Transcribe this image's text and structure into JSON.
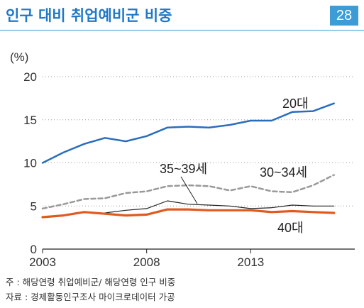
{
  "header": {
    "title": "인구 대비 취업예비군 비중",
    "badge": "28"
  },
  "chart_data": {
    "type": "line",
    "unit_label": "(%)",
    "x": [
      2003,
      2004,
      2005,
      2006,
      2007,
      2008,
      2009,
      2010,
      2011,
      2012,
      2013,
      2014,
      2015,
      2016,
      2017
    ],
    "xticks": [
      "2003",
      "2008",
      "2013"
    ],
    "yticks": [
      "0",
      "5",
      "10",
      "15",
      "20"
    ],
    "ylim": [
      0,
      20
    ],
    "xlim": [
      2003,
      2018
    ],
    "grid": "horizontal-dotted",
    "series": [
      {
        "name": "20대",
        "color": "#2a6ebb",
        "width": 2.5,
        "dash": "",
        "values": [
          10.0,
          11.2,
          12.2,
          12.9,
          12.5,
          13.1,
          14.1,
          14.2,
          14.1,
          14.4,
          14.9,
          14.9,
          15.9,
          16.0,
          16.9
        ]
      },
      {
        "name": "30~34세",
        "color": "#999999",
        "width": 2.5,
        "dash": "6,4",
        "values": [
          4.7,
          5.2,
          5.8,
          5.9,
          6.5,
          6.7,
          7.3,
          7.4,
          7.3,
          6.8,
          7.3,
          6.7,
          6.6,
          7.4,
          8.6
        ]
      },
      {
        "name": "35~39세",
        "color": "#222222",
        "width": 1.2,
        "dash": "",
        "values": [
          null,
          null,
          null,
          4.2,
          4.5,
          4.7,
          5.6,
          5.2,
          5.1,
          5.0,
          4.7,
          4.8,
          5.1,
          5.0,
          5.0
        ]
      },
      {
        "name": "40대",
        "color": "#e05a1e",
        "width": 3.2,
        "dash": "",
        "values": [
          3.7,
          3.9,
          4.3,
          4.1,
          3.9,
          4.0,
          4.6,
          4.6,
          4.5,
          4.5,
          4.5,
          4.3,
          4.4,
          4.3,
          4.2
        ]
      }
    ]
  },
  "footer": {
    "note": "주 : 해당연령 취업예비군/ 해당연령 인구 비중",
    "source": "자료 : 경제활동인구조사 마이크로데이터 가공"
  }
}
